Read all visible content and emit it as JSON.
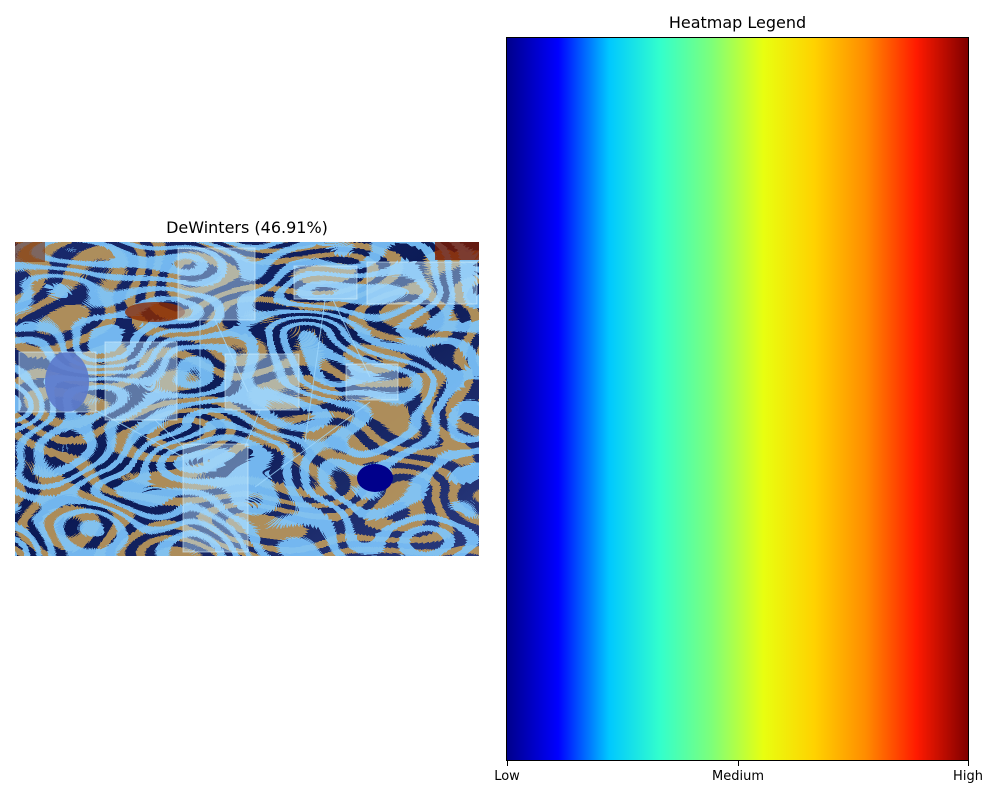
{
  "left_panel": {
    "title": "DeWinters (46.91%)",
    "image_name": "attention-heatmap-overlay"
  },
  "legend": {
    "title": "Heatmap Legend",
    "colormap": "jet",
    "colors": [
      "#00008b",
      "#0000ff",
      "#00c8ff",
      "#33ffcc",
      "#7dff7a",
      "#e8ff10",
      "#ffd200",
      "#ff8c00",
      "#ff1a00",
      "#800000"
    ],
    "ticks": [
      "Low",
      "Medium",
      "High"
    ]
  }
}
